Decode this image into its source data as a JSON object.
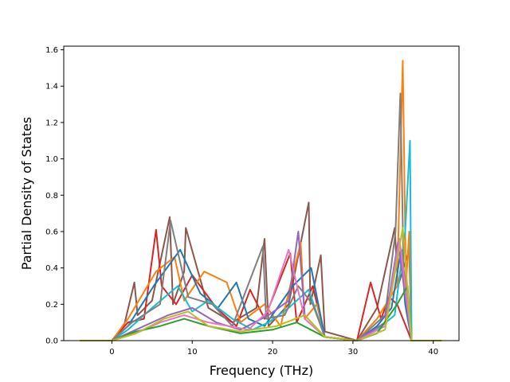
{
  "chart_data": {
    "type": "line",
    "title": "",
    "xlabel": "Frequency (THz)",
    "ylabel": "Partial Density of States",
    "xlim": [
      -5.99,
      43.2
    ],
    "ylim": [
      0.0,
      1.62
    ],
    "xticks": [
      0,
      10,
      20,
      30,
      40
    ],
    "xtick_labels": [
      "0",
      "10",
      "20",
      "30",
      "40"
    ],
    "yticks": [
      0.0,
      0.2,
      0.4,
      0.6,
      0.8,
      1.0,
      1.2,
      1.4,
      1.6
    ],
    "ytick_labels": [
      "0.0",
      "0.2",
      "0.4",
      "0.6",
      "0.8",
      "1.0",
      "1.2",
      "1.4",
      "1.6"
    ],
    "grid": false,
    "legend": "none",
    "series": [
      {
        "color": "#8c564b",
        "x": [
          -4,
          0,
          1.5,
          2.8,
          3.2,
          5.0,
          7.2,
          7.6,
          9.0,
          9.2,
          12,
          15,
          18,
          19.0,
          19.5,
          22,
          24.5,
          24.7,
          26.0,
          26.5,
          30.5,
          33,
          35.2,
          35.6,
          37.0,
          37.3,
          41
        ],
        "y": [
          0,
          0,
          0.08,
          0.32,
          0.14,
          0.22,
          0.68,
          0.2,
          0.38,
          0.62,
          0.18,
          0.1,
          0.18,
          0.56,
          0.08,
          0.2,
          0.76,
          0.2,
          0.47,
          0.05,
          0.0,
          0.18,
          0.62,
          0.3,
          0.5,
          0.0,
          0
        ]
      },
      {
        "color": "#d62728",
        "x": [
          -4,
          0,
          2,
          4,
          5.5,
          6.2,
          8,
          10,
          13,
          15.5,
          17.2,
          19,
          22.2,
          23,
          25,
          26.5,
          30.5,
          32.2,
          33.5,
          34.5,
          35.5,
          37.3,
          41
        ],
        "y": [
          0,
          0,
          0.1,
          0.12,
          0.61,
          0.3,
          0.2,
          0.36,
          0.18,
          0.08,
          0.28,
          0.12,
          0.48,
          0.1,
          0.3,
          0.02,
          0.0,
          0.32,
          0.12,
          0.24,
          0.2,
          0.0,
          0
        ]
      },
      {
        "color": "#ff7f0e",
        "x": [
          -4,
          0,
          2,
          5.5,
          7.8,
          9.0,
          11.5,
          14.3,
          16,
          19,
          21,
          23.5,
          24.0,
          25.5,
          26.5,
          30.5,
          33,
          35.5,
          36.2,
          36.6,
          37.0,
          37.3,
          41
        ],
        "y": [
          0,
          0,
          0.12,
          0.38,
          0.46,
          0.22,
          0.38,
          0.32,
          0.1,
          0.2,
          0.08,
          0.54,
          0.12,
          0.2,
          0.02,
          0.0,
          0.12,
          0.3,
          1.54,
          0.3,
          0.6,
          0.0,
          0
        ]
      },
      {
        "color": "#1f77b4",
        "x": [
          -4,
          0,
          2,
          5.2,
          8.5,
          11,
          13.2,
          15.5,
          17,
          19,
          22.5,
          24.8,
          26.5,
          30.5,
          33,
          34.8,
          36.0,
          36.5,
          37.3,
          41
        ],
        "y": [
          0,
          0,
          0.08,
          0.3,
          0.5,
          0.26,
          0.18,
          0.32,
          0.12,
          0.08,
          0.3,
          0.4,
          0.02,
          0.0,
          0.08,
          0.18,
          0.5,
          0.2,
          0.0,
          0
        ]
      },
      {
        "color": "#17becf",
        "x": [
          -4,
          0,
          2,
          5,
          8.2,
          10,
          12,
          15,
          17.5,
          19.5,
          22,
          24.5,
          26.5,
          30.5,
          33,
          35.2,
          36.5,
          37.1,
          37.3,
          41
        ],
        "y": [
          0,
          0,
          0.06,
          0.18,
          0.3,
          0.16,
          0.22,
          0.12,
          0.06,
          0.1,
          0.18,
          0.28,
          0.02,
          0.0,
          0.06,
          0.14,
          0.6,
          1.1,
          0.0,
          0
        ]
      },
      {
        "color": "#7f7f7f",
        "x": [
          -4,
          0,
          2.5,
          6,
          7.3,
          9.5,
          12.5,
          15,
          18.8,
          19.2,
          21.5,
          23.2,
          25,
          26.5,
          30.5,
          32,
          34,
          35.3,
          35.9,
          36.3,
          37.3,
          41
        ],
        "y": [
          0,
          0,
          0.1,
          0.2,
          0.66,
          0.24,
          0.2,
          0.08,
          0.52,
          0.12,
          0.14,
          0.3,
          0.2,
          0.02,
          0.0,
          0.06,
          0.14,
          0.6,
          1.36,
          0.4,
          0.0,
          0
        ]
      },
      {
        "color": "#9467bd",
        "x": [
          -4,
          0,
          3,
          7,
          10,
          13,
          16,
          19.5,
          22,
          23.2,
          24,
          26.5,
          30.5,
          34,
          35.6,
          36.4,
          37.3,
          41
        ],
        "y": [
          0,
          0,
          0.06,
          0.14,
          0.18,
          0.1,
          0.06,
          0.14,
          0.22,
          0.6,
          0.14,
          0.02,
          0.0,
          0.1,
          0.54,
          0.28,
          0.0,
          0
        ]
      },
      {
        "color": "#e377c2",
        "x": [
          -4,
          0,
          3,
          6,
          9,
          12,
          17,
          19.4,
          22,
          24,
          26.5,
          30.5,
          34,
          35.8,
          37.3,
          41
        ],
        "y": [
          0,
          0,
          0.04,
          0.1,
          0.14,
          0.1,
          0.06,
          0.16,
          0.5,
          0.12,
          0.02,
          0.0,
          0.08,
          0.56,
          0.0,
          0
        ]
      },
      {
        "color": "#2ca02c",
        "x": [
          -4,
          0,
          3,
          6,
          9,
          12,
          16,
          20,
          23,
          26.5,
          30.5,
          33,
          35.5,
          36.8,
          37.3,
          41
        ],
        "y": [
          0,
          0,
          0.05,
          0.08,
          0.12,
          0.08,
          0.04,
          0.06,
          0.1,
          0.02,
          0.0,
          0.04,
          0.2,
          0.3,
          0.0,
          0
        ]
      },
      {
        "color": "#bcbd22",
        "x": [
          -4,
          0,
          3,
          6.5,
          9.5,
          12,
          16,
          20.5,
          24,
          26.5,
          30.5,
          34,
          36.2,
          37.3,
          41
        ],
        "y": [
          0,
          0,
          0.04,
          0.12,
          0.16,
          0.08,
          0.05,
          0.08,
          0.14,
          0.02,
          0.0,
          0.06,
          0.62,
          0.0,
          0
        ]
      }
    ]
  }
}
